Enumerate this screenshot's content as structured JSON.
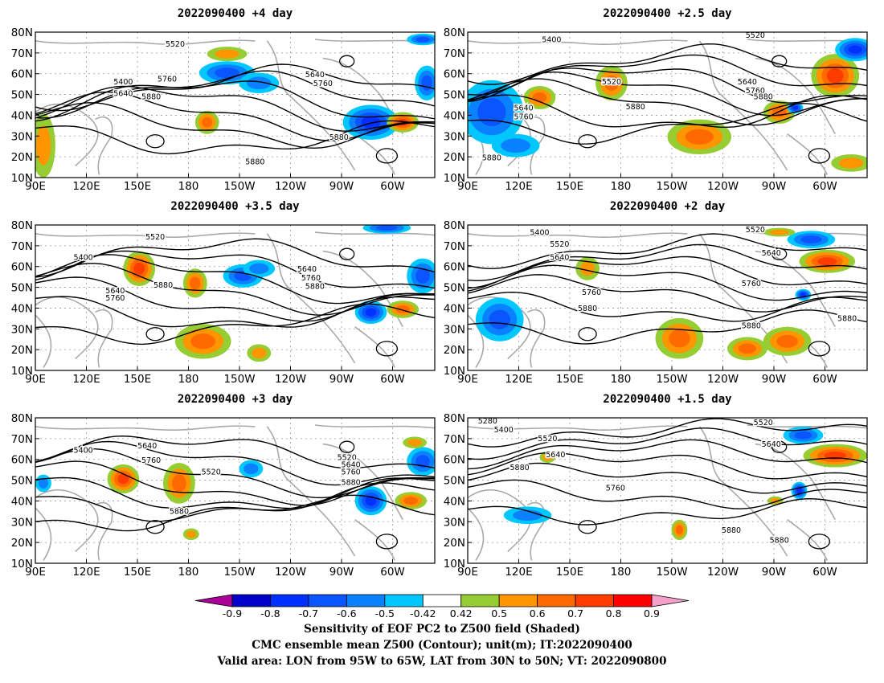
{
  "figure": {
    "colors": {
      "land": "#a9a9a9",
      "contour": "#000000",
      "grid": "#9a9a9a"
    },
    "panels": [
      {
        "id": "p4",
        "title": "2022090400  +4 day",
        "contour_labels": [
          "5520",
          "5400",
          "5640",
          "5760",
          "5880",
          "5640",
          "5760",
          "5880",
          "5880"
        ]
      },
      {
        "id": "p2_5",
        "title": "2022090400  +2.5 day",
        "contour_labels": [
          "5400",
          "5520",
          "5520",
          "5640",
          "5760",
          "5880",
          "5640",
          "5760",
          "5880",
          "5880"
        ]
      },
      {
        "id": "p3_5",
        "title": "2022090400  +3.5 day",
        "contour_labels": [
          "5520",
          "5400",
          "5640",
          "5760",
          "5880",
          "5640",
          "5760",
          "5880"
        ]
      },
      {
        "id": "p2",
        "title": "2022090400  +2 day",
        "contour_labels": [
          "5400",
          "5520",
          "5640",
          "5760",
          "5880",
          "5520",
          "5640",
          "5760",
          "5880",
          "5880"
        ]
      },
      {
        "id": "p3",
        "title": "2022090400  +3 day",
        "contour_labels": [
          "5400",
          "5640",
          "5760",
          "5520",
          "5880",
          "5520",
          "5640",
          "5760",
          "5880"
        ]
      },
      {
        "id": "p1_5",
        "title": "2022090400  +1.5 day",
        "contour_labels": [
          "5280",
          "5400",
          "5520",
          "5640",
          "5880",
          "5760",
          "5520",
          "5640",
          "5880",
          "5880"
        ]
      }
    ],
    "lat_labels": [
      "80N",
      "70N",
      "60N",
      "50N",
      "40N",
      "30N",
      "20N",
      "10N"
    ],
    "lon_labels": [
      "90E",
      "120E",
      "150E",
      "180",
      "150W",
      "120W",
      "90W",
      "60W"
    ]
  },
  "colorbar": {
    "colors": [
      "#aa0099",
      "#0000c8",
      "#0030ff",
      "#0a55ff",
      "#0a82ff",
      "#00c8ff",
      "#ffffff",
      "#95cd32",
      "#ff9600",
      "#ff6a00",
      "#ff3c00",
      "#ff0000",
      "#f5a0c8"
    ],
    "tick_labels": [
      "-0.9",
      "-0.8",
      "-0.7",
      "-0.6",
      "-0.5",
      "-0.42",
      "0.42",
      "0.5",
      "0.6",
      "0.7",
      "0.8",
      "0.9"
    ]
  },
  "caption": {
    "line1": "Sensitivity of EOF PC2 to Z500 field (Shaded)",
    "line2": "CMC ensemble mean Z500 (Contour); unit(m); IT:2022090400",
    "line3": "Valid area: LON from 95W to 65W, LAT from 30N to 50N; VT: 2022090800"
  }
}
